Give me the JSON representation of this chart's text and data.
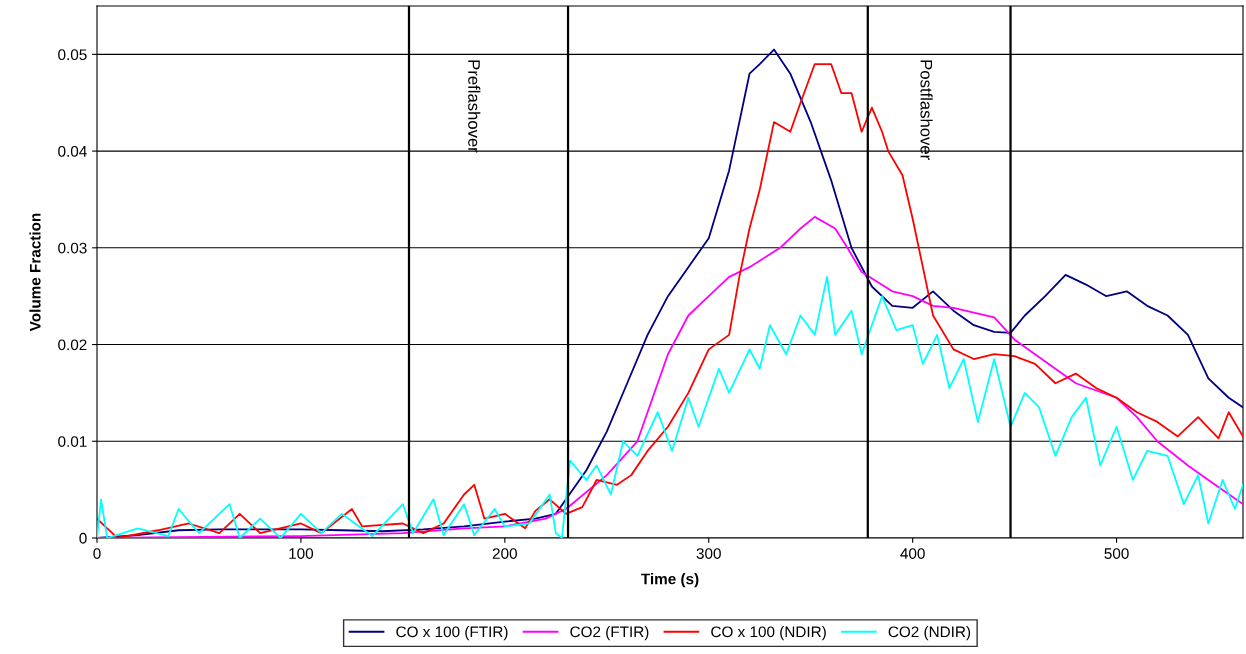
{
  "chart_data": {
    "type": "line",
    "xlabel": "Time (s)",
    "ylabel": "Volume Fraction",
    "xlim": [
      0,
      562
    ],
    "ylim": [
      0,
      0.055
    ],
    "xticks": [
      0,
      100,
      200,
      300,
      400,
      500
    ],
    "yticks": [
      0,
      0.01,
      0.02,
      0.03,
      0.04,
      0.05
    ],
    "grid": "y",
    "legend": "bottom",
    "marker": "none",
    "line_style": "solid",
    "ref_lines": [
      {
        "axis": "x",
        "value": 153,
        "color": "#000000"
      },
      {
        "axis": "x",
        "value": 231,
        "color": "#000000"
      },
      {
        "axis": "x",
        "value": 378,
        "color": "#000000"
      },
      {
        "axis": "x",
        "value": 448,
        "color": "#000000"
      }
    ],
    "annotations": [
      "Preflashover",
      "Postflashover"
    ],
    "series": [
      {
        "name": "CO x 100 (FTIR)",
        "color": "#000080",
        "x": [
          0,
          20,
          40,
          60,
          80,
          100,
          120,
          140,
          160,
          180,
          200,
          215,
          225,
          230,
          240,
          250,
          260,
          270,
          280,
          290,
          300,
          310,
          315,
          320,
          325,
          332,
          340,
          350,
          360,
          370,
          380,
          390,
          400,
          410,
          420,
          430,
          440,
          448,
          455,
          465,
          475,
          485,
          495,
          505,
          515,
          525,
          535,
          545,
          555,
          562
        ],
        "values": [
          0,
          0.0003,
          0.0008,
          0.0009,
          0.0009,
          0.0009,
          0.0008,
          0.0007,
          0.0009,
          0.0012,
          0.0017,
          0.002,
          0.0025,
          0.004,
          0.007,
          0.011,
          0.016,
          0.021,
          0.025,
          0.028,
          0.031,
          0.038,
          0.043,
          0.048,
          0.049,
          0.0505,
          0.048,
          0.043,
          0.037,
          0.03,
          0.026,
          0.024,
          0.0238,
          0.0255,
          0.0235,
          0.022,
          0.0213,
          0.0212,
          0.023,
          0.025,
          0.0272,
          0.0262,
          0.025,
          0.0255,
          0.024,
          0.023,
          0.021,
          0.0165,
          0.0145,
          0.0135
        ]
      },
      {
        "name": "CO2 (FTIR)",
        "color": "#ff00ff",
        "x": [
          0,
          100,
          150,
          180,
          200,
          220,
          230,
          250,
          265,
          280,
          290,
          300,
          310,
          320,
          335,
          345,
          352,
          362,
          368,
          375,
          390,
          400,
          410,
          420,
          440,
          450,
          460,
          470,
          480,
          500,
          510,
          520,
          535,
          545,
          562
        ],
        "values": [
          0,
          0.0002,
          0.0005,
          0.001,
          0.0012,
          0.002,
          0.003,
          0.0065,
          0.01,
          0.019,
          0.023,
          0.025,
          0.027,
          0.028,
          0.03,
          0.032,
          0.0332,
          0.032,
          0.03,
          0.0275,
          0.0255,
          0.025,
          0.024,
          0.0238,
          0.0228,
          0.0205,
          0.019,
          0.0175,
          0.016,
          0.0145,
          0.0125,
          0.01,
          0.0075,
          0.006,
          0.0035
        ]
      },
      {
        "name": "CO x 100 (NDIR)",
        "color": "#ff0000",
        "x": [
          0,
          5,
          10,
          30,
          45,
          60,
          70,
          80,
          100,
          110,
          125,
          130,
          150,
          160,
          170,
          180,
          185,
          190,
          200,
          210,
          215,
          222,
          230,
          238,
          245,
          255,
          262,
          270,
          280,
          290,
          300,
          310,
          315,
          320,
          325,
          332,
          340,
          345,
          352,
          360,
          365,
          370,
          375,
          380,
          385,
          388,
          395,
          400,
          405,
          410,
          420,
          430,
          440,
          450,
          460,
          470,
          480,
          490,
          500,
          510,
          520,
          530,
          540,
          550,
          555,
          562
        ],
        "values": [
          0.002,
          0.001,
          0,
          0.0008,
          0.0015,
          0.0005,
          0.0025,
          0.0005,
          0.0015,
          0.0005,
          0.003,
          0.0012,
          0.0015,
          0.0005,
          0.0015,
          0.0045,
          0.0055,
          0.002,
          0.0025,
          0.001,
          0.0028,
          0.004,
          0.0025,
          0.0032,
          0.006,
          0.0055,
          0.0065,
          0.009,
          0.0115,
          0.015,
          0.0195,
          0.021,
          0.027,
          0.032,
          0.036,
          0.043,
          0.042,
          0.045,
          0.049,
          0.049,
          0.046,
          0.046,
          0.042,
          0.0445,
          0.042,
          0.04,
          0.0375,
          0.033,
          0.028,
          0.023,
          0.0195,
          0.0185,
          0.019,
          0.0188,
          0.018,
          0.016,
          0.017,
          0.0155,
          0.0145,
          0.013,
          0.012,
          0.0105,
          0.0125,
          0.0103,
          0.013,
          0.0105
        ]
      },
      {
        "name": "CO2 (NDIR)",
        "color": "#00ffff",
        "x": [
          0,
          2,
          5,
          20,
          35,
          40,
          50,
          65,
          70,
          80,
          90,
          100,
          110,
          120,
          135,
          150,
          155,
          165,
          170,
          180,
          185,
          195,
          200,
          212,
          222,
          225,
          228,
          232,
          240,
          245,
          252,
          258,
          265,
          275,
          282,
          290,
          295,
          305,
          310,
          320,
          325,
          330,
          338,
          345,
          352,
          358,
          362,
          370,
          375,
          385,
          392,
          400,
          405,
          412,
          418,
          425,
          432,
          440,
          448,
          455,
          462,
          470,
          478,
          485,
          492,
          500,
          508,
          515,
          525,
          533,
          540,
          545,
          552,
          558,
          562
        ],
        "values": [
          0,
          0.004,
          0,
          0.001,
          0.0002,
          0.003,
          0.0005,
          0.0035,
          0,
          0.002,
          0,
          0.0025,
          0.0005,
          0.0025,
          0.0002,
          0.0035,
          0.0005,
          0.004,
          0.0003,
          0.0035,
          0.0003,
          0.003,
          0.0012,
          0.0015,
          0.0045,
          0.0005,
          0,
          0.008,
          0.006,
          0.0075,
          0.0045,
          0.01,
          0.0085,
          0.013,
          0.009,
          0.0145,
          0.0115,
          0.0175,
          0.015,
          0.0195,
          0.0175,
          0.022,
          0.019,
          0.023,
          0.021,
          0.027,
          0.021,
          0.0235,
          0.019,
          0.025,
          0.0215,
          0.022,
          0.018,
          0.021,
          0.0155,
          0.0185,
          0.012,
          0.0185,
          0.0115,
          0.015,
          0.0135,
          0.0085,
          0.0125,
          0.0145,
          0.0075,
          0.0115,
          0.006,
          0.009,
          0.0085,
          0.0035,
          0.0065,
          0.0015,
          0.006,
          0.003,
          0.0055
        ]
      }
    ]
  }
}
